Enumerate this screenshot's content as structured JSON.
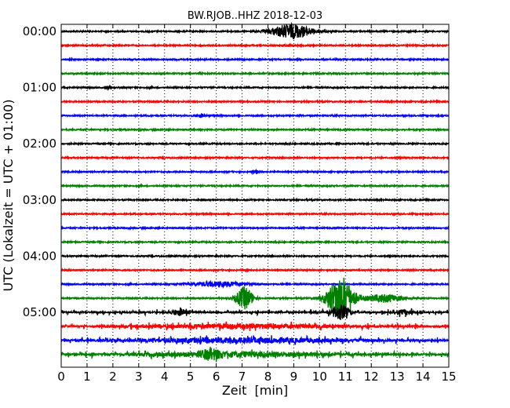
{
  "chart_data": {
    "type": "line",
    "title": "BW.RJOB..HHZ 2018-12-03",
    "xlabel": "Zeit  [min]",
    "ylabel": "UTC (Lokalzeit = UTC + 01:00)",
    "xlim": [
      0,
      15
    ],
    "x_ticks": [
      "0",
      "1",
      "2",
      "3",
      "4",
      "5",
      "6",
      "7",
      "8",
      "9",
      "10",
      "11",
      "12",
      "13",
      "14",
      "15"
    ],
    "y_tick_labels": [
      "00:00",
      "01:00",
      "02:00",
      "03:00",
      "04:00",
      "05:00"
    ],
    "trace_interval_min": 15,
    "trace_count": 24,
    "trace_colors": [
      "#000000",
      "#ff0000",
      "#0000ff",
      "#008000"
    ],
    "grid": "vertical dotted at each minute",
    "events": [
      {
        "trace": 0,
        "center_min": 8.9,
        "duration_min": 2.2,
        "amplitude": 9
      },
      {
        "trace": 1,
        "center_min": 8.8,
        "duration_min": 0.6,
        "amplitude": 1.2
      },
      {
        "trace": 4,
        "center_min": 1.8,
        "duration_min": 0.3,
        "amplitude": 1.5
      },
      {
        "trace": 6,
        "center_min": 5.4,
        "duration_min": 0.6,
        "amplitude": 2
      },
      {
        "trace": 10,
        "center_min": 7.5,
        "duration_min": 0.4,
        "amplitude": 2.5
      },
      {
        "trace": 18,
        "center_min": 6.1,
        "duration_min": 3.0,
        "amplitude": 3
      },
      {
        "trace": 19,
        "center_min": 7.1,
        "duration_min": 0.9,
        "amplitude": 14
      },
      {
        "trace": 19,
        "center_min": 10.8,
        "duration_min": 1.4,
        "amplitude": 28
      },
      {
        "trace": 19,
        "center_min": 12.5,
        "duration_min": 2.0,
        "amplitude": 5
      },
      {
        "trace": 20,
        "center_min": 4.6,
        "duration_min": 0.9,
        "amplitude": 4
      },
      {
        "trace": 20,
        "center_min": 10.8,
        "duration_min": 1.0,
        "amplitude": 9
      },
      {
        "trace": 20,
        "center_min": 13.3,
        "duration_min": 1.0,
        "amplitude": 3
      },
      {
        "trace": 21,
        "center_min": 7.0,
        "duration_min": 12,
        "amplitude": 2.5
      },
      {
        "trace": 22,
        "center_min": 7.0,
        "duration_min": 12,
        "amplitude": 3
      },
      {
        "trace": 23,
        "center_min": 5.8,
        "duration_min": 1.0,
        "amplitude": 5
      },
      {
        "trace": 23,
        "center_min": 7.0,
        "duration_min": 12,
        "amplitude": 3
      }
    ]
  }
}
